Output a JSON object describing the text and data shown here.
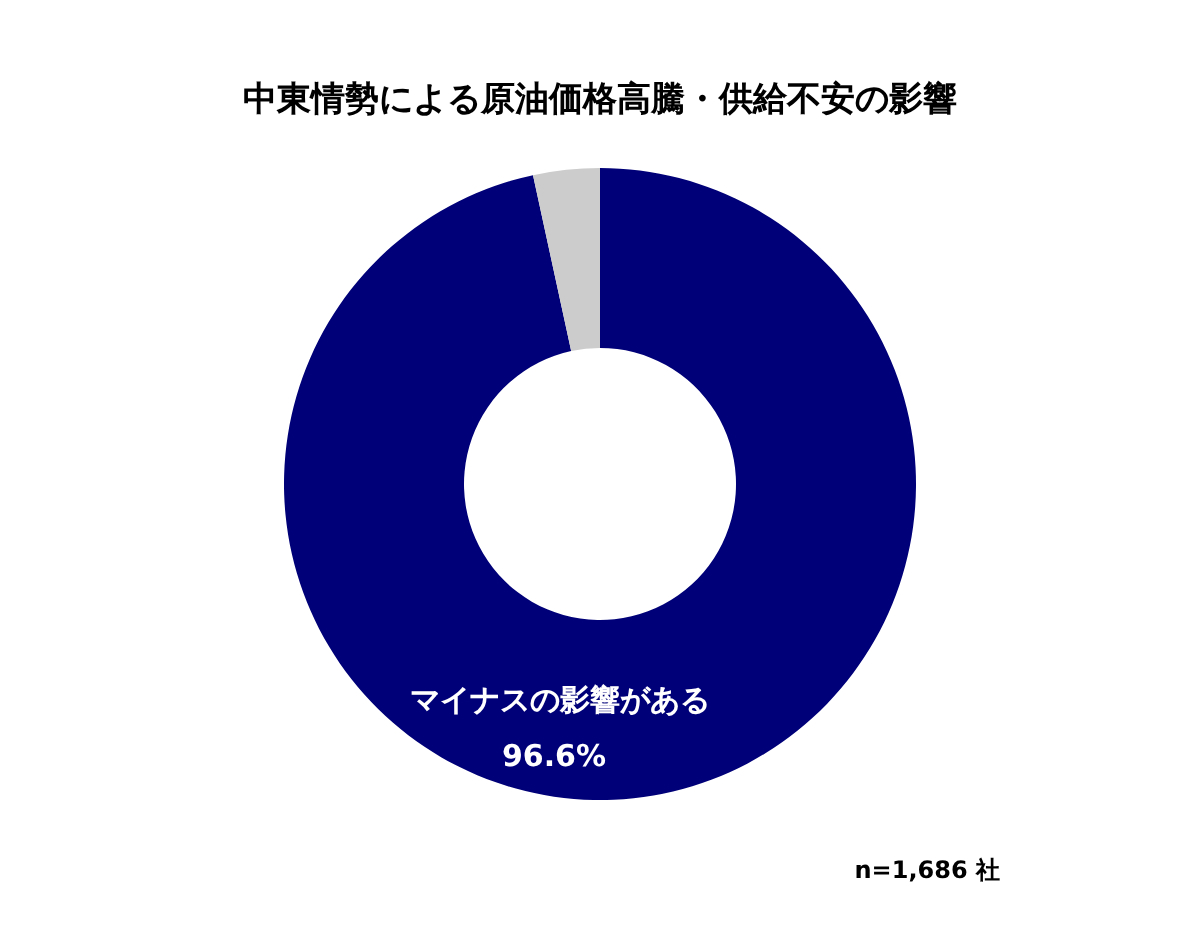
{
  "chart_data": {
    "type": "donut",
    "title": "中東情勢による原油価格高騰・供給不安の影響",
    "categories": [
      "マイナスの影響がある",
      null
    ],
    "values": [
      96.6,
      3.4
    ],
    "colors": [
      "#000078",
      "#cccccc"
    ],
    "value_labels": [
      "96.6%",
      null
    ],
    "annotations": [
      "n=1,686 社"
    ]
  }
}
